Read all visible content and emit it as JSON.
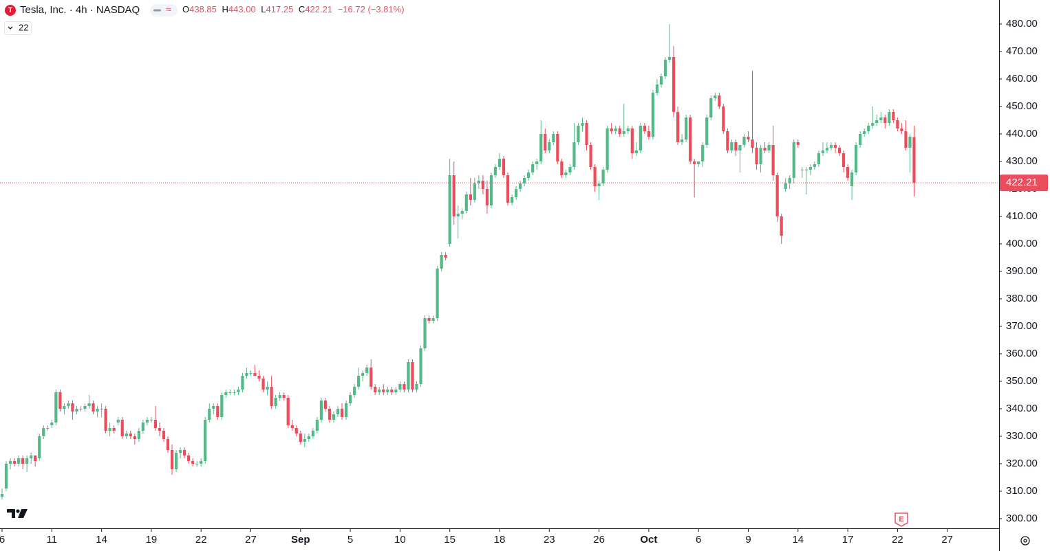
{
  "chart_data": {
    "type": "candlestick",
    "title": "Tesla, Inc. · 4h · NASDAQ",
    "header": {
      "o": "O",
      "open": "438.85",
      "h": "H",
      "high": "443.00",
      "l": "L",
      "low": "417.25",
      "c": "C",
      "close": "422.21",
      "change": "−16.72 (−3.81%)",
      "indicator": "22"
    },
    "up_color": "#53b987",
    "down_color": "#eb4d5c",
    "last_price_line": true,
    "xlim": [
      -0.5,
      240.5
    ],
    "ylim": [
      296.25,
      488.75
    ],
    "xticks": [
      {
        "value": 0,
        "label": "6"
      },
      {
        "value": 12,
        "label": "11"
      },
      {
        "value": 24,
        "label": "14"
      },
      {
        "value": 36,
        "label": "19"
      },
      {
        "value": 48,
        "label": "22"
      },
      {
        "value": 60,
        "label": "27"
      },
      {
        "value": 72,
        "label": "Sep"
      },
      {
        "value": 84,
        "label": "5"
      },
      {
        "value": 96,
        "label": "10"
      },
      {
        "value": 108,
        "label": "15"
      },
      {
        "value": 120,
        "label": "18"
      },
      {
        "value": 132,
        "label": "23"
      },
      {
        "value": 144,
        "label": "26"
      },
      {
        "value": 156,
        "label": "Oct"
      },
      {
        "value": 168,
        "label": "6"
      },
      {
        "value": 180,
        "label": "9"
      },
      {
        "value": 192,
        "label": "14"
      },
      {
        "value": 204,
        "label": "17"
      },
      {
        "value": 216,
        "label": "22"
      },
      {
        "value": 228,
        "label": "27"
      }
    ],
    "yticks": [
      {
        "value": 300,
        "label": "300.00"
      },
      {
        "value": 310,
        "label": "310.00"
      },
      {
        "value": 320,
        "label": "320.00"
      },
      {
        "value": 330,
        "label": "330.00"
      },
      {
        "value": 340,
        "label": "340.00"
      },
      {
        "value": 350,
        "label": "350.00"
      },
      {
        "value": 360,
        "label": "360.00"
      },
      {
        "value": 370,
        "label": "370.00"
      },
      {
        "value": 380,
        "label": "380.00"
      },
      {
        "value": 390,
        "label": "390.00"
      },
      {
        "value": 400,
        "label": "400.00"
      },
      {
        "value": 410,
        "label": "410.00"
      },
      {
        "value": 420,
        "label": "420.00"
      },
      {
        "value": 430,
        "label": "430.00"
      },
      {
        "value": 440,
        "label": "440.00"
      },
      {
        "value": 450,
        "label": "450.00"
      },
      {
        "value": 460,
        "label": "460.00"
      },
      {
        "value": 470,
        "label": "470.00"
      },
      {
        "value": 480,
        "label": "480.00"
      }
    ],
    "candles": [
      [
        308,
        311,
        307,
        309
      ],
      [
        311,
        321,
        310,
        320
      ],
      [
        320,
        322,
        318,
        321
      ],
      [
        321,
        322,
        319,
        320
      ],
      [
        320,
        323,
        319,
        322
      ],
      [
        322,
        323,
        318,
        320
      ],
      [
        320,
        323,
        317,
        322
      ],
      [
        322,
        324,
        320,
        323
      ],
      [
        323,
        323,
        319,
        321
      ],
      [
        322,
        331,
        321,
        330
      ],
      [
        330,
        334,
        329,
        333
      ],
      [
        333,
        334,
        332,
        333
      ],
      [
        334,
        336,
        333,
        335
      ],
      [
        335,
        347,
        334,
        346
      ],
      [
        346,
        347,
        339,
        340
      ],
      [
        340,
        342,
        338,
        341
      ],
      [
        341,
        343,
        340,
        342
      ],
      [
        342,
        343,
        336,
        339
      ],
      [
        339,
        341,
        338,
        340
      ],
      [
        340,
        341,
        339,
        340
      ],
      [
        340,
        342,
        339,
        341
      ],
      [
        341,
        345,
        340,
        342
      ],
      [
        342,
        343,
        338,
        339
      ],
      [
        339,
        341,
        337,
        340
      ],
      [
        340,
        342,
        337,
        340
      ],
      [
        340,
        341,
        331,
        332
      ],
      [
        332,
        335,
        330,
        333
      ],
      [
        333,
        334,
        331,
        332
      ],
      [
        335,
        337,
        334,
        336
      ],
      [
        336,
        337,
        329,
        330
      ],
      [
        330,
        332,
        329,
        331
      ],
      [
        331,
        332,
        329,
        330
      ],
      [
        330,
        331,
        327,
        329
      ],
      [
        329,
        333,
        328,
        332
      ],
      [
        332,
        336,
        331,
        335
      ],
      [
        335,
        337,
        334,
        336
      ],
      [
        336,
        337,
        335,
        336
      ],
      [
        336,
        341,
        332,
        333
      ],
      [
        333,
        335,
        330,
        332
      ],
      [
        332,
        333,
        328,
        329
      ],
      [
        329,
        330,
        324,
        325
      ],
      [
        325,
        327,
        316,
        318
      ],
      [
        318,
        325,
        317,
        324
      ],
      [
        324,
        326,
        322,
        325
      ],
      [
        325,
        326,
        322,
        323
      ],
      [
        323,
        324,
        320,
        321
      ],
      [
        321,
        322,
        319,
        320
      ],
      [
        320,
        321,
        319,
        320
      ],
      [
        320,
        322,
        319,
        321
      ],
      [
        321,
        337,
        320,
        336
      ],
      [
        336,
        342,
        335,
        340
      ],
      [
        340,
        342,
        338,
        341
      ],
      [
        341,
        342,
        336,
        337
      ],
      [
        337,
        346,
        336,
        345
      ],
      [
        345,
        347,
        344,
        346
      ],
      [
        346,
        347,
        345,
        346
      ],
      [
        346,
        347,
        345,
        346
      ],
      [
        346,
        348,
        345,
        347
      ],
      [
        347,
        353,
        346,
        352
      ],
      [
        352,
        355,
        351,
        353
      ],
      [
        353,
        354,
        352,
        353
      ],
      [
        353,
        356,
        352,
        352
      ],
      [
        352,
        354,
        350,
        351
      ],
      [
        351,
        352,
        346,
        347
      ],
      [
        347,
        350,
        345,
        348
      ],
      [
        348,
        352,
        340,
        341
      ],
      [
        341,
        345,
        340,
        344
      ],
      [
        344,
        346,
        343,
        345
      ],
      [
        345,
        346,
        343,
        344
      ],
      [
        344,
        345,
        333,
        334
      ],
      [
        334,
        336,
        332,
        333
      ],
      [
        333,
        334,
        330,
        331
      ],
      [
        331,
        332,
        327,
        328
      ],
      [
        328,
        331,
        326,
        329
      ],
      [
        329,
        331,
        328,
        330
      ],
      [
        330,
        333,
        329,
        332
      ],
      [
        332,
        337,
        331,
        336
      ],
      [
        336,
        344,
        335,
        343
      ],
      [
        343,
        344,
        339,
        340
      ],
      [
        340,
        341,
        335,
        336
      ],
      [
        336,
        339,
        335,
        338
      ],
      [
        338,
        341,
        337,
        340
      ],
      [
        340,
        342,
        336,
        337
      ],
      [
        337,
        343,
        336,
        342
      ],
      [
        342,
        346,
        341,
        345
      ],
      [
        345,
        349,
        344,
        348
      ],
      [
        348,
        355,
        347,
        352
      ],
      [
        352,
        354,
        350,
        353
      ],
      [
        353,
        356,
        352,
        355
      ],
      [
        355,
        358,
        347,
        348
      ],
      [
        348,
        349,
        345,
        346
      ],
      [
        346,
        348,
        345,
        347
      ],
      [
        347,
        349,
        345,
        346
      ],
      [
        346,
        348,
        345,
        347
      ],
      [
        347,
        348,
        345,
        346
      ],
      [
        346,
        348,
        345,
        347
      ],
      [
        347,
        350,
        346,
        349
      ],
      [
        349,
        350,
        346,
        347
      ],
      [
        347,
        358,
        346,
        357
      ],
      [
        357,
        358,
        346,
        347
      ],
      [
        347,
        350,
        346,
        349
      ],
      [
        349,
        363,
        348,
        362
      ],
      [
        362,
        374,
        361,
        373
      ],
      [
        373,
        374,
        371,
        372
      ],
      [
        372,
        374,
        371,
        373
      ],
      [
        373,
        392,
        372,
        391
      ],
      [
        391,
        397,
        390,
        396
      ],
      [
        396,
        397,
        394,
        395
      ],
      [
        400,
        431,
        399,
        425
      ],
      [
        425,
        430,
        407,
        410
      ],
      [
        410,
        414,
        402,
        411
      ],
      [
        411,
        413,
        409,
        412
      ],
      [
        412,
        419,
        411,
        418
      ],
      [
        418,
        424,
        414,
        416
      ],
      [
        416,
        424,
        415,
        422
      ],
      [
        422,
        425,
        420,
        423
      ],
      [
        423,
        425,
        418,
        420
      ],
      [
        420,
        423,
        411,
        414
      ],
      [
        414,
        426,
        413,
        425
      ],
      [
        425,
        429,
        424,
        428
      ],
      [
        428,
        433,
        427,
        431
      ],
      [
        431,
        432,
        424,
        425
      ],
      [
        425,
        426,
        414,
        415
      ],
      [
        415,
        418,
        414,
        417
      ],
      [
        417,
        421,
        416,
        420
      ],
      [
        420,
        423,
        419,
        422
      ],
      [
        422,
        425,
        421,
        424
      ],
      [
        424,
        427,
        423,
        426
      ],
      [
        426,
        430,
        425,
        429
      ],
      [
        429,
        431,
        427,
        430
      ],
      [
        430,
        445,
        429,
        440
      ],
      [
        440,
        442,
        433,
        434
      ],
      [
        434,
        438,
        433,
        437
      ],
      [
        437,
        441,
        436,
        440
      ],
      [
        440,
        441,
        429,
        430
      ],
      [
        430,
        431,
        424,
        425
      ],
      [
        425,
        427,
        424,
        426
      ],
      [
        426,
        429,
        425,
        428
      ],
      [
        428,
        444,
        427,
        437
      ],
      [
        437,
        444,
        436,
        443
      ],
      [
        443,
        446,
        441,
        444
      ],
      [
        444,
        445,
        434,
        436
      ],
      [
        436,
        437,
        427,
        428
      ],
      [
        428,
        429,
        419,
        421
      ],
      [
        421,
        423,
        416,
        422
      ],
      [
        422,
        428,
        421,
        427
      ],
      [
        427,
        443,
        426,
        442
      ],
      [
        442,
        444,
        440,
        441
      ],
      [
        441,
        443,
        440,
        442
      ],
      [
        442,
        443,
        439,
        440
      ],
      [
        440,
        451,
        439,
        441
      ],
      [
        441,
        443,
        440,
        442
      ],
      [
        442,
        443,
        431,
        433
      ],
      [
        433,
        437,
        432,
        434
      ],
      [
        434,
        444,
        433,
        443
      ],
      [
        443,
        444,
        440,
        441
      ],
      [
        441,
        443,
        438,
        439
      ],
      [
        439,
        456,
        438,
        455
      ],
      [
        455,
        460,
        454,
        458
      ],
      [
        458,
        462,
        457,
        461
      ],
      [
        461,
        468,
        460,
        467
      ],
      [
        467,
        480,
        466,
        468
      ],
      [
        468,
        472,
        446,
        448
      ],
      [
        448,
        450,
        436,
        437
      ],
      [
        437,
        440,
        436,
        438
      ],
      [
        438,
        447,
        437,
        446
      ],
      [
        446,
        447,
        429,
        430
      ],
      [
        430,
        431,
        417,
        429
      ],
      [
        429,
        430,
        428,
        430
      ],
      [
        430,
        437,
        428,
        436
      ],
      [
        436,
        447,
        435,
        446
      ],
      [
        446,
        454,
        445,
        453
      ],
      [
        453,
        455,
        452,
        454
      ],
      [
        454,
        455,
        449,
        450
      ],
      [
        450,
        451,
        440,
        441
      ],
      [
        441,
        442,
        433,
        434
      ],
      [
        434,
        438,
        433,
        437
      ],
      [
        437,
        438,
        432,
        434
      ],
      [
        434,
        436,
        426,
        436
      ],
      [
        436,
        440,
        435,
        439
      ],
      [
        439,
        441,
        437,
        438
      ],
      [
        438,
        463,
        433,
        435
      ],
      [
        435,
        437,
        427,
        429
      ],
      [
        429,
        436,
        426,
        435
      ],
      [
        435,
        437,
        433,
        434
      ],
      [
        434,
        437,
        433,
        436
      ],
      [
        436,
        443,
        423,
        425
      ],
      [
        425,
        426,
        408,
        410
      ],
      [
        410,
        411,
        400,
        403
      ],
      [
        420,
        424,
        419,
        422
      ],
      [
        422,
        425,
        420,
        424
      ],
      [
        424,
        438,
        422,
        437
      ],
      [
        437,
        438,
        435,
        436
      ],
      [
        427,
        428,
        424,
        427
      ],
      [
        427,
        428,
        418,
        427
      ],
      [
        427,
        429,
        425,
        428
      ],
      [
        428,
        430,
        427,
        429
      ],
      [
        429,
        434,
        428,
        433
      ],
      [
        433,
        437,
        432,
        434
      ],
      [
        434,
        437,
        433,
        435
      ],
      [
        435,
        437,
        434,
        436
      ],
      [
        436,
        437,
        433,
        435
      ],
      [
        435,
        436,
        432,
        433
      ],
      [
        433,
        434,
        426,
        428
      ],
      [
        428,
        429,
        423,
        424
      ],
      [
        421,
        427,
        416,
        426
      ],
      [
        426,
        437,
        425,
        436
      ],
      [
        436,
        441,
        435,
        440
      ],
      [
        440,
        442,
        439,
        441
      ],
      [
        441,
        444,
        440,
        443
      ],
      [
        443,
        450,
        442,
        444
      ],
      [
        444,
        447,
        443,
        445
      ],
      [
        445,
        448,
        444,
        446
      ],
      [
        446,
        447,
        442,
        444
      ],
      [
        444,
        449,
        443,
        448
      ],
      [
        448,
        449,
        444,
        445
      ],
      [
        445,
        446,
        441,
        442
      ],
      [
        442,
        444,
        440,
        441
      ],
      [
        441,
        445,
        434,
        435
      ],
      [
        435,
        440,
        426,
        439
      ],
      [
        438.85,
        443,
        417.25,
        422.21
      ]
    ]
  }
}
